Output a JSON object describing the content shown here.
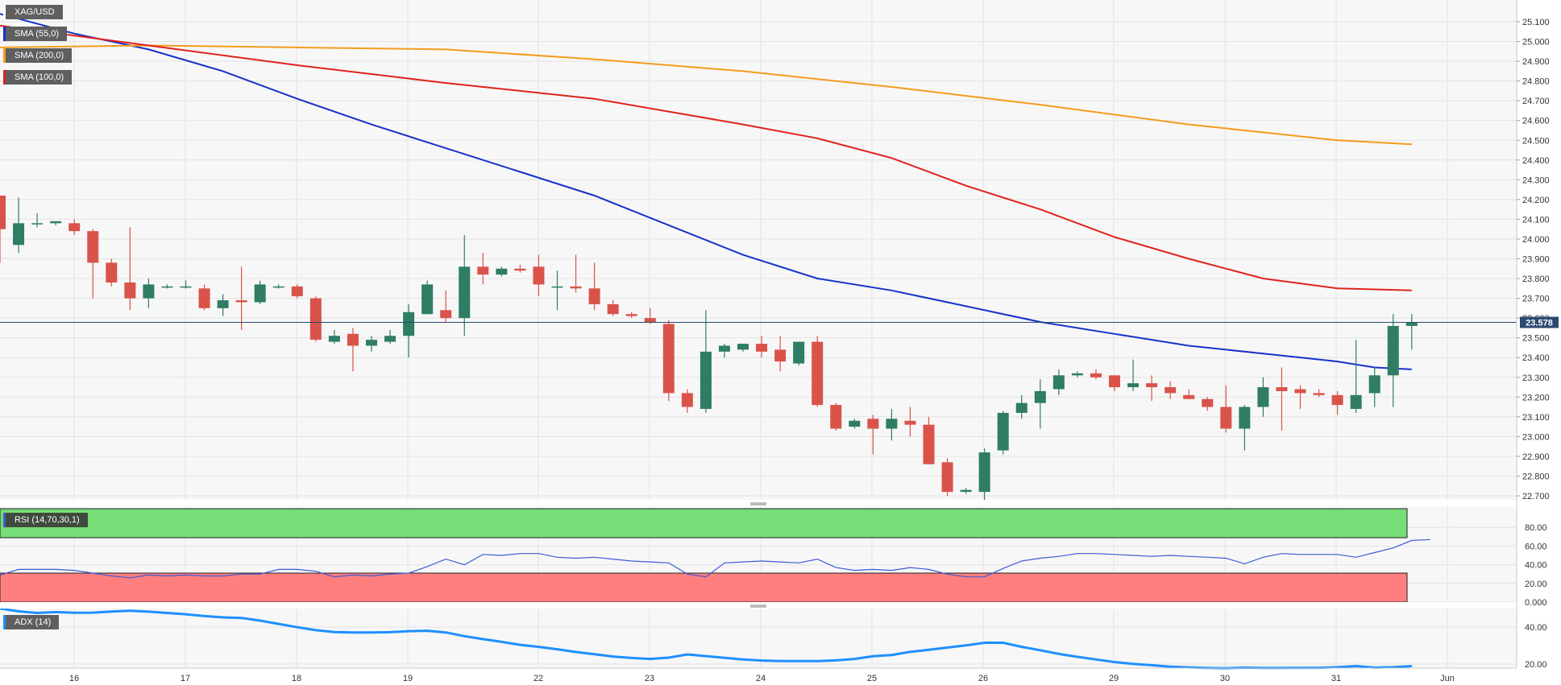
{
  "chart_data": [
    {
      "type": "candlestick",
      "symbol": "XAG/USD",
      "ylim": [
        22.66,
        25.18
      ],
      "yticks": [
        "25.100",
        "25.000",
        "24.900",
        "24.800",
        "24.700",
        "24.600",
        "24.500",
        "24.400",
        "24.300",
        "24.200",
        "24.100",
        "24.000",
        "23.900",
        "23.800",
        "23.700",
        "23.600",
        "23.500",
        "23.400",
        "23.300",
        "23.200",
        "23.100",
        "23.000",
        "22.900",
        "22.800",
        "22.700"
      ],
      "last_price": 23.578,
      "last_price_label": "23.578",
      "x_labels": [
        "16",
        "17",
        "18",
        "19",
        "22",
        "23",
        "24",
        "25",
        "26",
        "29",
        "30",
        "31",
        "Jun"
      ],
      "colors": {
        "up": "#2e7d64",
        "down": "#d9534a",
        "last_line": "#2b4a6f"
      },
      "candles": [
        {
          "o": 24.22,
          "h": 24.22,
          "l": 23.88,
          "c": 24.05
        },
        {
          "o": 23.97,
          "h": 24.21,
          "l": 23.93,
          "c": 24.08
        },
        {
          "o": 24.08,
          "h": 24.13,
          "l": 24.06,
          "c": 24.08
        },
        {
          "o": 24.08,
          "h": 24.09,
          "l": 24.07,
          "c": 24.09
        },
        {
          "o": 24.08,
          "h": 24.1,
          "l": 24.02,
          "c": 24.04
        },
        {
          "o": 24.04,
          "h": 24.05,
          "l": 23.7,
          "c": 23.88
        },
        {
          "o": 23.88,
          "h": 23.9,
          "l": 23.76,
          "c": 23.78
        },
        {
          "o": 23.78,
          "h": 24.06,
          "l": 23.64,
          "c": 23.7
        },
        {
          "o": 23.7,
          "h": 23.8,
          "l": 23.65,
          "c": 23.77
        },
        {
          "o": 23.76,
          "h": 23.77,
          "l": 23.75,
          "c": 23.76
        },
        {
          "o": 23.76,
          "h": 23.79,
          "l": 23.75,
          "c": 23.76
        },
        {
          "o": 23.75,
          "h": 23.77,
          "l": 23.64,
          "c": 23.65
        },
        {
          "o": 23.65,
          "h": 23.72,
          "l": 23.61,
          "c": 23.69
        },
        {
          "o": 23.69,
          "h": 23.86,
          "l": 23.54,
          "c": 23.68
        },
        {
          "o": 23.68,
          "h": 23.79,
          "l": 23.67,
          "c": 23.77
        },
        {
          "o": 23.76,
          "h": 23.77,
          "l": 23.75,
          "c": 23.76
        },
        {
          "o": 23.76,
          "h": 23.77,
          "l": 23.7,
          "c": 23.71
        },
        {
          "o": 23.7,
          "h": 23.71,
          "l": 23.48,
          "c": 23.49
        },
        {
          "o": 23.48,
          "h": 23.54,
          "l": 23.47,
          "c": 23.51
        },
        {
          "o": 23.52,
          "h": 23.55,
          "l": 23.33,
          "c": 23.46
        },
        {
          "o": 23.46,
          "h": 23.51,
          "l": 23.43,
          "c": 23.49
        },
        {
          "o": 23.48,
          "h": 23.54,
          "l": 23.47,
          "c": 23.51
        },
        {
          "o": 23.51,
          "h": 23.67,
          "l": 23.4,
          "c": 23.63
        },
        {
          "o": 23.62,
          "h": 23.79,
          "l": 23.62,
          "c": 23.77
        },
        {
          "o": 23.64,
          "h": 23.74,
          "l": 23.58,
          "c": 23.6
        },
        {
          "o": 23.6,
          "h": 24.02,
          "l": 23.51,
          "c": 23.86
        },
        {
          "o": 23.86,
          "h": 23.93,
          "l": 23.77,
          "c": 23.82
        },
        {
          "o": 23.82,
          "h": 23.86,
          "l": 23.81,
          "c": 23.85
        },
        {
          "o": 23.85,
          "h": 23.87,
          "l": 23.83,
          "c": 23.84
        },
        {
          "o": 23.86,
          "h": 23.92,
          "l": 23.71,
          "c": 23.77
        },
        {
          "o": 23.76,
          "h": 23.84,
          "l": 23.64,
          "c": 23.76
        },
        {
          "o": 23.76,
          "h": 23.92,
          "l": 23.73,
          "c": 23.75
        },
        {
          "o": 23.75,
          "h": 23.88,
          "l": 23.64,
          "c": 23.67
        },
        {
          "o": 23.67,
          "h": 23.69,
          "l": 23.61,
          "c": 23.62
        },
        {
          "o": 23.62,
          "h": 23.63,
          "l": 23.6,
          "c": 23.61
        },
        {
          "o": 23.6,
          "h": 23.65,
          "l": 23.57,
          "c": 23.58
        },
        {
          "o": 23.57,
          "h": 23.59,
          "l": 23.18,
          "c": 23.22
        },
        {
          "o": 23.22,
          "h": 23.24,
          "l": 23.12,
          "c": 23.15
        },
        {
          "o": 23.14,
          "h": 23.64,
          "l": 23.12,
          "c": 23.43
        },
        {
          "o": 23.43,
          "h": 23.47,
          "l": 23.4,
          "c": 23.46
        },
        {
          "o": 23.44,
          "h": 23.46,
          "l": 23.43,
          "c": 23.47
        },
        {
          "o": 23.47,
          "h": 23.51,
          "l": 23.4,
          "c": 23.43
        },
        {
          "o": 23.44,
          "h": 23.51,
          "l": 23.33,
          "c": 23.38
        },
        {
          "o": 23.37,
          "h": 23.48,
          "l": 23.36,
          "c": 23.48
        },
        {
          "o": 23.48,
          "h": 23.51,
          "l": 23.15,
          "c": 23.16
        },
        {
          "o": 23.16,
          "h": 23.17,
          "l": 23.03,
          "c": 23.04
        },
        {
          "o": 23.05,
          "h": 23.09,
          "l": 23.04,
          "c": 23.08
        },
        {
          "o": 23.09,
          "h": 23.11,
          "l": 22.91,
          "c": 23.04
        },
        {
          "o": 23.04,
          "h": 23.14,
          "l": 22.98,
          "c": 23.09
        },
        {
          "o": 23.08,
          "h": 23.15,
          "l": 23.0,
          "c": 23.06
        },
        {
          "o": 23.06,
          "h": 23.1,
          "l": 22.86,
          "c": 22.86
        },
        {
          "o": 22.87,
          "h": 22.89,
          "l": 22.7,
          "c": 22.72
        },
        {
          "o": 22.72,
          "h": 22.74,
          "l": 22.71,
          "c": 22.73
        },
        {
          "o": 22.72,
          "h": 22.94,
          "l": 22.68,
          "c": 22.92
        },
        {
          "o": 22.93,
          "h": 23.13,
          "l": 22.91,
          "c": 23.12
        },
        {
          "o": 23.12,
          "h": 23.21,
          "l": 23.09,
          "c": 23.17
        },
        {
          "o": 23.17,
          "h": 23.29,
          "l": 23.04,
          "c": 23.23
        },
        {
          "o": 23.24,
          "h": 23.34,
          "l": 23.21,
          "c": 23.31
        },
        {
          "o": 23.31,
          "h": 23.33,
          "l": 23.3,
          "c": 23.32
        },
        {
          "o": 23.32,
          "h": 23.34,
          "l": 23.29,
          "c": 23.3
        },
        {
          "o": 23.31,
          "h": 23.31,
          "l": 23.23,
          "c": 23.25
        },
        {
          "o": 23.25,
          "h": 23.39,
          "l": 23.23,
          "c": 23.27
        },
        {
          "o": 23.27,
          "h": 23.31,
          "l": 23.18,
          "c": 23.25
        },
        {
          "o": 23.25,
          "h": 23.28,
          "l": 23.19,
          "c": 23.22
        },
        {
          "o": 23.21,
          "h": 23.24,
          "l": 23.19,
          "c": 23.19
        },
        {
          "o": 23.19,
          "h": 23.2,
          "l": 23.13,
          "c": 23.15
        },
        {
          "o": 23.15,
          "h": 23.26,
          "l": 23.02,
          "c": 23.04
        },
        {
          "o": 23.04,
          "h": 23.16,
          "l": 22.93,
          "c": 23.15
        },
        {
          "o": 23.15,
          "h": 23.3,
          "l": 23.1,
          "c": 23.25
        },
        {
          "o": 23.25,
          "h": 23.35,
          "l": 23.03,
          "c": 23.23
        },
        {
          "o": 23.24,
          "h": 23.26,
          "l": 23.14,
          "c": 23.22
        },
        {
          "o": 23.22,
          "h": 23.24,
          "l": 23.2,
          "c": 23.21
        },
        {
          "o": 23.21,
          "h": 23.23,
          "l": 23.11,
          "c": 23.16
        },
        {
          "o": 23.14,
          "h": 23.49,
          "l": 23.12,
          "c": 23.21
        },
        {
          "o": 23.22,
          "h": 23.35,
          "l": 23.15,
          "c": 23.31
        },
        {
          "o": 23.31,
          "h": 23.62,
          "l": 23.15,
          "c": 23.56
        },
        {
          "o": 23.56,
          "h": 23.62,
          "l": 23.44,
          "c": 23.58
        }
      ],
      "sma_lines": [
        {
          "name": "SMA (55,0)",
          "color": "#1632c8",
          "points": [
            [
              0,
              25.14
            ],
            [
              4,
              25.04
            ],
            [
              8,
              24.96
            ],
            [
              12,
              24.85
            ],
            [
              16,
              24.71
            ],
            [
              20,
              24.58
            ],
            [
              24,
              24.46
            ],
            [
              28,
              24.34
            ],
            [
              32,
              24.22
            ],
            [
              36,
              24.07
            ],
            [
              40,
              23.92
            ],
            [
              44,
              23.8
            ],
            [
              48,
              23.74
            ],
            [
              52,
              23.66
            ],
            [
              56,
              23.58
            ],
            [
              60,
              23.52
            ],
            [
              64,
              23.46
            ],
            [
              68,
              23.42
            ],
            [
              72,
              23.38
            ],
            [
              74,
              23.35
            ],
            [
              76,
              23.34
            ]
          ]
        },
        {
          "name": "SMA (200,0)",
          "color": "#f39c1e",
          "points": [
            [
              0,
              24.97
            ],
            [
              8,
              24.98
            ],
            [
              16,
              24.97
            ],
            [
              24,
              24.96
            ],
            [
              32,
              24.91
            ],
            [
              40,
              24.85
            ],
            [
              48,
              24.77
            ],
            [
              56,
              24.68
            ],
            [
              64,
              24.58
            ],
            [
              72,
              24.5
            ],
            [
              76,
              24.48
            ]
          ]
        },
        {
          "name": "SMA (100,0)",
          "color": "#e0221c",
          "points": [
            [
              0,
              25.08
            ],
            [
              8,
              24.98
            ],
            [
              16,
              24.88
            ],
            [
              24,
              24.79
            ],
            [
              32,
              24.71
            ],
            [
              40,
              24.58
            ],
            [
              44,
              24.51
            ],
            [
              48,
              24.41
            ],
            [
              52,
              24.27
            ],
            [
              56,
              24.15
            ],
            [
              60,
              24.01
            ],
            [
              64,
              23.9
            ],
            [
              68,
              23.8
            ],
            [
              72,
              23.75
            ],
            [
              76,
              23.74
            ]
          ]
        }
      ],
      "legend": [
        "XAG/USD",
        "SMA (55,0)",
        "SMA (200,0)",
        "SMA (100,0)"
      ],
      "grid": true
    },
    {
      "type": "line",
      "name": "RSI (14,70,30,1)",
      "ylim": [
        0,
        100
      ],
      "overbought": 70,
      "oversold": 30,
      "yticks": [
        "80.00",
        "60.00",
        "40.00",
        "20.00",
        "0.000"
      ],
      "color": "#3b5bd6",
      "values": [
        29,
        35,
        35,
        35,
        34,
        31,
        28,
        26,
        29,
        28,
        29,
        28,
        28,
        30,
        30,
        35,
        35,
        33,
        27,
        29,
        28,
        30,
        31,
        38,
        46,
        40,
        51,
        50,
        52,
        52,
        48,
        47,
        48,
        46,
        44,
        43,
        42,
        30,
        27,
        42,
        43,
        44,
        43,
        42,
        46,
        37,
        34,
        35,
        34,
        37,
        35,
        30,
        27,
        27,
        36,
        44,
        47,
        49,
        52,
        52,
        51,
        50,
        49,
        50,
        49,
        48,
        47,
        41,
        48,
        52,
        51,
        51,
        51,
        48,
        53,
        58,
        66,
        67
      ]
    },
    {
      "type": "line",
      "name": "ADX (14)",
      "ylim": [
        12,
        52
      ],
      "yticks": [
        "40.00",
        "20.00"
      ],
      "color": "#1e90ff",
      "values": [
        50,
        48.5,
        47.6,
        48.1,
        47.7,
        47.8,
        48.4,
        48.8,
        48.3,
        47.6,
        46.9,
        45.9,
        45.2,
        44.9,
        43.5,
        41.7,
        39.9,
        38.3,
        37.3,
        37.1,
        37.1,
        37.2,
        37.8,
        38.0,
        37.1,
        35.1,
        33.5,
        32.0,
        30.4,
        29.3,
        28.0,
        26.5,
        25.3,
        24.1,
        23.3,
        22.8,
        23.5,
        25.2,
        24.3,
        23.4,
        22.5,
        21.9,
        21.6,
        21.6,
        21.6,
        22.0,
        22.8,
        24.2,
        24.9,
        26.6,
        27.7,
        28.9,
        30.1,
        31.5,
        31.5,
        29.3,
        27.5,
        25.5,
        23.9,
        22.5,
        21.1,
        20.1,
        19.4,
        18.6,
        18.2,
        17.9,
        17.8,
        18.1,
        17.9,
        17.9,
        18.0,
        18.0,
        18.3,
        18.9,
        18.1,
        18.3,
        18.9
      ]
    }
  ]
}
